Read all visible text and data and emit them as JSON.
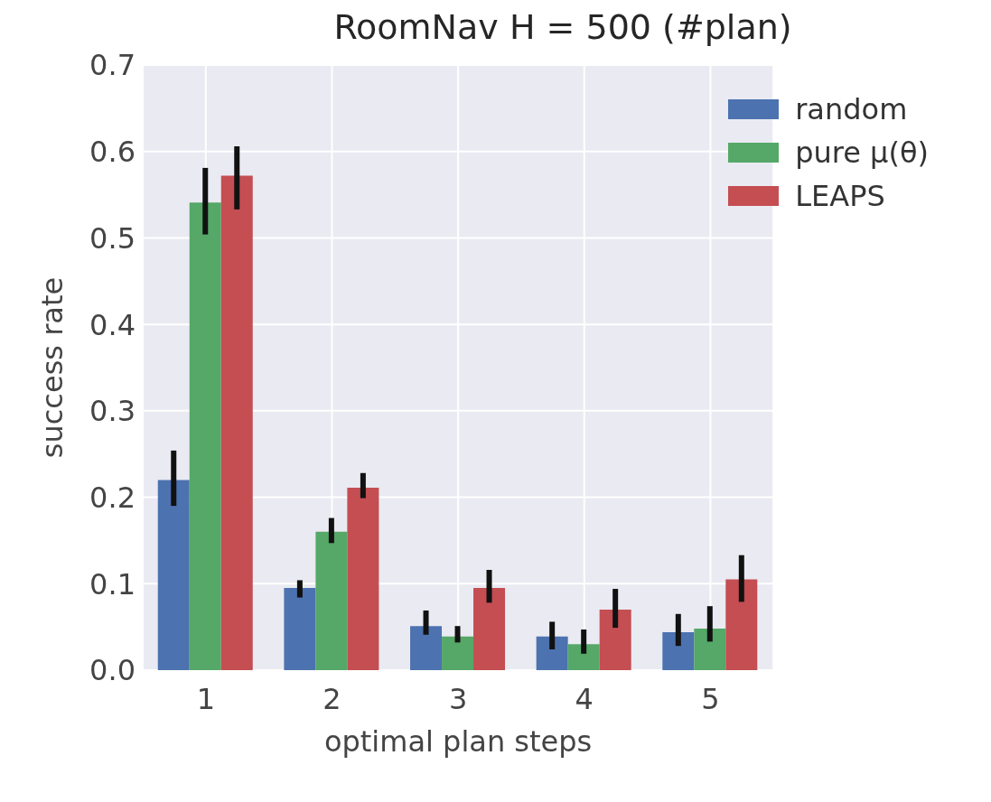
{
  "chart_data": {
    "type": "bar",
    "title": "RoomNav H = 500 (#plan)",
    "xlabel": "optimal plan steps",
    "ylabel": "success rate",
    "categories": [
      "1",
      "2",
      "3",
      "4",
      "5"
    ],
    "series": [
      {
        "name": "random",
        "color": "#4c72b0",
        "values": [
          0.22,
          0.095,
          0.051,
          0.039,
          0.044
        ],
        "errors": [
          [
            0.19,
            0.254
          ],
          [
            0.084,
            0.104
          ],
          [
            0.041,
            0.069
          ],
          [
            0.024,
            0.056
          ],
          [
            0.028,
            0.065
          ]
        ]
      },
      {
        "name": "pure μ(θ)",
        "color": "#55a868",
        "values": [
          0.541,
          0.16,
          0.039,
          0.03,
          0.048
        ],
        "errors": [
          [
            0.504,
            0.581
          ],
          [
            0.147,
            0.176
          ],
          [
            0.032,
            0.051
          ],
          [
            0.019,
            0.047
          ],
          [
            0.033,
            0.074
          ]
        ]
      },
      {
        "name": "LEAPS",
        "color": "#c44e52",
        "values": [
          0.572,
          0.211,
          0.095,
          0.07,
          0.105
        ],
        "errors": [
          [
            0.533,
            0.606
          ],
          [
            0.199,
            0.228
          ],
          [
            0.078,
            0.116
          ],
          [
            0.049,
            0.094
          ],
          [
            0.079,
            0.133
          ]
        ]
      }
    ],
    "ylim": [
      0,
      0.7
    ],
    "yticks": [
      {
        "value": 0,
        "label": "0.0"
      },
      {
        "value": 0.1,
        "label": "0.1"
      },
      {
        "value": 0.2,
        "label": "0.2"
      },
      {
        "value": 0.3,
        "label": "0.3"
      },
      {
        "value": 0.4,
        "label": "0.4"
      },
      {
        "value": 0.5,
        "label": "0.5"
      },
      {
        "value": 0.6,
        "label": "0.6"
      },
      {
        "value": 0.7,
        "label": "0.7"
      }
    ],
    "grid": true,
    "legend": "top right"
  }
}
